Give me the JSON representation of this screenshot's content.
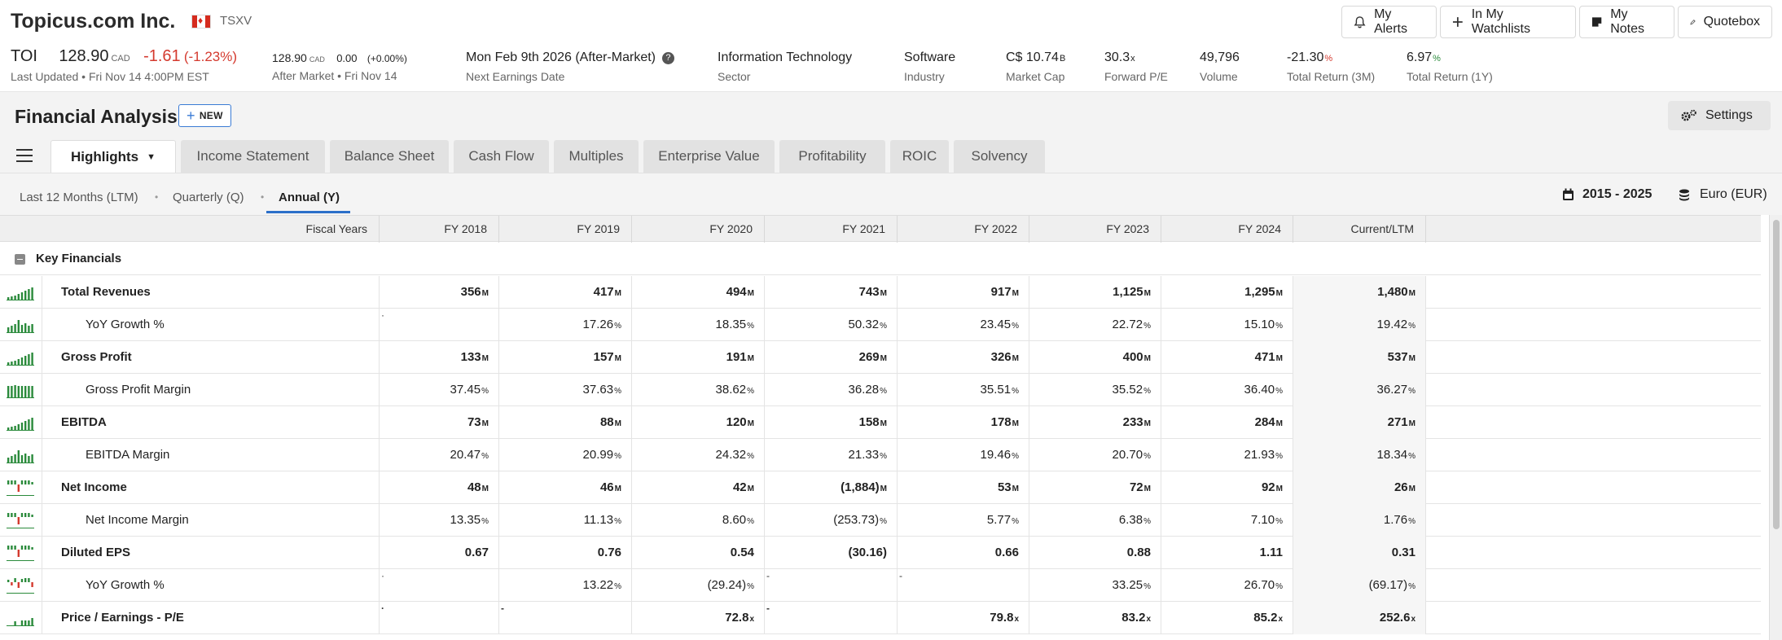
{
  "company": {
    "name": "Topicus.com Inc.",
    "exchange": "TSXV",
    "ticker": "TOI",
    "price": "128.90",
    "currency": "CAD",
    "change": "-1.61",
    "change_pct": "(-1.23%)",
    "last_updated": "Last Updated • Fri Nov 14 4:00PM EST",
    "after_price": "128.90",
    "after_change": "0.00",
    "after_change_pct": "(+0.00%)",
    "after_label": "After Market • Fri Nov 14"
  },
  "stats": [
    {
      "value": "Mon Feb 9th 2026 (After-Market)",
      "label": "Next Earnings Date"
    },
    {
      "value": "Information Technology",
      "label": "Sector"
    },
    {
      "value": "Software",
      "label": "Industry"
    },
    {
      "value": "C$ 10.74",
      "unit": "B",
      "label": "Market Cap"
    },
    {
      "value": "30.3",
      "unit": "x",
      "label": "Forward P/E"
    },
    {
      "value": "49,796",
      "label": "Volume"
    },
    {
      "value": "-21.30",
      "unit": "%",
      "label": "Total Return (3M)"
    },
    {
      "value": "6.97",
      "unit": "%",
      "label": "Total Return (1Y)"
    }
  ],
  "top_buttons": [
    "My Alerts",
    "In My Watchlists",
    "My Notes",
    "Quotebox"
  ],
  "page": {
    "title": "Financial Analysis",
    "new_label": "NEW",
    "settings_label": "Settings"
  },
  "tabs": [
    "Highlights",
    "Income Statement",
    "Balance Sheet",
    "Cash Flow",
    "Multiples",
    "Enterprise Value",
    "Profitability",
    "ROIC",
    "Solvency"
  ],
  "periods": [
    "Last 12 Months (LTM)",
    "Quarterly (Q)",
    "Annual (Y)"
  ],
  "range_label": "2015 - 2025",
  "currency_label": "Euro (EUR)",
  "table": {
    "fiscal_label": "Fiscal Years",
    "columns": [
      "FY 2018",
      "FY 2019",
      "FY 2020",
      "FY 2021",
      "FY 2022",
      "FY 2023",
      "FY 2024",
      "Current/LTM"
    ],
    "section": "Key Financials",
    "rows": [
      {
        "label": "Total Revenues",
        "bold": true,
        "indent": false,
        "unit": "M",
        "spark": "bars-up",
        "cells": [
          {
            "v": "356"
          },
          {
            "v": "417"
          },
          {
            "v": "494"
          },
          {
            "v": "743"
          },
          {
            "v": "917"
          },
          {
            "v": "1,125"
          },
          {
            "v": "1,295"
          },
          {
            "v": "1,480"
          }
        ]
      },
      {
        "label": "YoY Growth %",
        "bold": false,
        "indent": true,
        "unit": "%",
        "spark": "bars-mixed",
        "cells": [
          {
            "v": "",
            "dash": "·"
          },
          {
            "v": "17.26",
            "c": "pos"
          },
          {
            "v": "18.35",
            "c": "pos"
          },
          {
            "v": "50.32",
            "c": "pos"
          },
          {
            "v": "23.45",
            "c": "pos"
          },
          {
            "v": "22.72",
            "c": "pos"
          },
          {
            "v": "15.10",
            "c": "pos"
          },
          {
            "v": "19.42",
            "c": "pos"
          }
        ]
      },
      {
        "label": "Gross Profit",
        "bold": true,
        "indent": false,
        "unit": "M",
        "spark": "bars-up",
        "cells": [
          {
            "v": "133"
          },
          {
            "v": "157"
          },
          {
            "v": "191"
          },
          {
            "v": "269"
          },
          {
            "v": "326"
          },
          {
            "v": "400"
          },
          {
            "v": "471"
          },
          {
            "v": "537"
          }
        ]
      },
      {
        "label": "Gross Profit Margin",
        "bold": false,
        "indent": true,
        "unit": "%",
        "spark": "bars-flat",
        "cells": [
          {
            "v": "37.45",
            "c": "pos"
          },
          {
            "v": "37.63",
            "c": "pos"
          },
          {
            "v": "38.62",
            "c": "pos"
          },
          {
            "v": "36.28",
            "c": "pos"
          },
          {
            "v": "35.51",
            "c": "pos"
          },
          {
            "v": "35.52",
            "c": "pos"
          },
          {
            "v": "36.40",
            "c": "pos"
          },
          {
            "v": "36.27",
            "c": "pos"
          }
        ]
      },
      {
        "label": "EBITDA",
        "bold": true,
        "indent": false,
        "unit": "M",
        "spark": "bars-up",
        "cells": [
          {
            "v": "73"
          },
          {
            "v": "88"
          },
          {
            "v": "120"
          },
          {
            "v": "158"
          },
          {
            "v": "178"
          },
          {
            "v": "233"
          },
          {
            "v": "284"
          },
          {
            "v": "271"
          }
        ]
      },
      {
        "label": "EBITDA Margin",
        "bold": false,
        "indent": true,
        "unit": "%",
        "spark": "bars-mixed",
        "cells": [
          {
            "v": "20.47",
            "c": "pos"
          },
          {
            "v": "20.99",
            "c": "pos"
          },
          {
            "v": "24.32",
            "c": "pos"
          },
          {
            "v": "21.33",
            "c": "pos"
          },
          {
            "v": "19.46",
            "c": "pos"
          },
          {
            "v": "20.70",
            "c": "pos"
          },
          {
            "v": "21.93",
            "c": "pos"
          },
          {
            "v": "18.34",
            "c": "pos"
          }
        ]
      },
      {
        "label": "Net Income",
        "bold": true,
        "indent": false,
        "unit": "M",
        "spark": "bars-dip",
        "cells": [
          {
            "v": "48"
          },
          {
            "v": "46"
          },
          {
            "v": "42"
          },
          {
            "v": "(1,884)"
          },
          {
            "v": "53"
          },
          {
            "v": "72"
          },
          {
            "v": "92"
          },
          {
            "v": "26"
          }
        ]
      },
      {
        "label": "Net Income Margin",
        "bold": false,
        "indent": true,
        "unit": "%",
        "spark": "bars-dip",
        "cells": [
          {
            "v": "13.35",
            "c": "pos"
          },
          {
            "v": "11.13",
            "c": "pos"
          },
          {
            "v": "8.60",
            "c": "pos"
          },
          {
            "v": "(253.73)",
            "c": "neg"
          },
          {
            "v": "5.77",
            "c": "pos"
          },
          {
            "v": "6.38",
            "c": "pos"
          },
          {
            "v": "7.10",
            "c": "pos"
          },
          {
            "v": "1.76",
            "c": "pos"
          }
        ]
      },
      {
        "label": "Diluted EPS",
        "bold": true,
        "indent": false,
        "unit": "",
        "spark": "bars-dip",
        "cells": [
          {
            "v": "0.67"
          },
          {
            "v": "0.76"
          },
          {
            "v": "0.54"
          },
          {
            "v": "(30.16)"
          },
          {
            "v": "0.66"
          },
          {
            "v": "0.88"
          },
          {
            "v": "1.11"
          },
          {
            "v": "0.31"
          }
        ]
      },
      {
        "label": "YoY Growth %",
        "bold": false,
        "indent": true,
        "unit": "%",
        "spark": "bars-redmix",
        "cells": [
          {
            "v": "",
            "dash": "·"
          },
          {
            "v": "13.22",
            "c": "pos"
          },
          {
            "v": "(29.24)",
            "c": "neg"
          },
          {
            "v": "",
            "dash": "-"
          },
          {
            "v": "",
            "dash": "-"
          },
          {
            "v": "33.25",
            "c": "pos"
          },
          {
            "v": "26.70",
            "c": "pos"
          },
          {
            "v": "(69.17)",
            "c": "neg"
          }
        ]
      },
      {
        "label": "Price / Earnings - P/E",
        "bold": true,
        "indent": false,
        "unit": "x",
        "spark": "bars-low",
        "cells": [
          {
            "v": "",
            "dash": "·"
          },
          {
            "v": "",
            "dash": "-"
          },
          {
            "v": "72.8"
          },
          {
            "v": "",
            "dash": "-"
          },
          {
            "v": "79.8"
          },
          {
            "v": "83.2"
          },
          {
            "v": "85.2"
          },
          {
            "v": "252.6"
          }
        ]
      }
    ]
  }
}
